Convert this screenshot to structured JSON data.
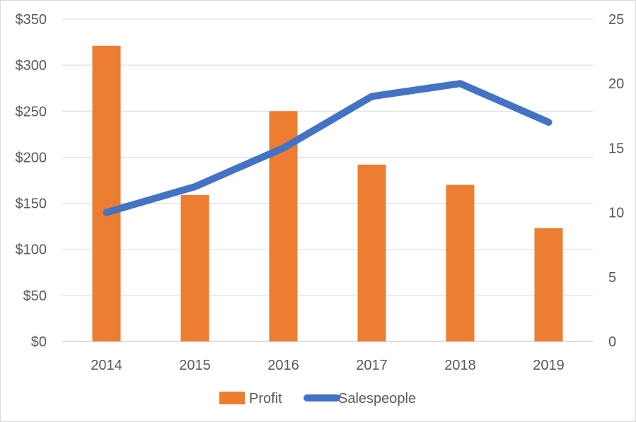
{
  "chart_data": {
    "type": "bar",
    "categories": [
      "2014",
      "2015",
      "2016",
      "2017",
      "2018",
      "2019"
    ],
    "series": [
      {
        "name": "Profit",
        "type": "bar",
        "axis": "left",
        "color": "#ED7D31",
        "values": [
          321,
          159,
          250,
          192,
          170,
          123
        ]
      },
      {
        "name": "Salespeople",
        "type": "line",
        "axis": "right",
        "color": "#4472C4",
        "values": [
          10,
          12,
          15,
          19,
          20,
          17
        ]
      }
    ],
    "y_left": {
      "ylim": [
        0,
        350
      ],
      "ticks": [
        0,
        50,
        100,
        150,
        200,
        250,
        300,
        350
      ],
      "tick_labels": [
        "$0",
        "$50",
        "$100",
        "$150",
        "$200",
        "$250",
        "$300",
        "$350"
      ]
    },
    "y_right": {
      "ylim": [
        0,
        25
      ],
      "ticks": [
        0,
        5,
        10,
        15,
        20,
        25
      ],
      "tick_labels": [
        "0",
        "5",
        "10",
        "15",
        "20",
        "25"
      ]
    },
    "grid": true,
    "legend": {
      "position": "bottom",
      "entries": [
        "Profit",
        "Salespeople"
      ]
    },
    "title": "",
    "xlabel": "",
    "ylabel": ""
  }
}
